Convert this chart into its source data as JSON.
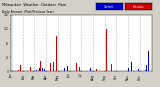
{
  "title": "Milwaukee  Weather  Outdoor  Rain",
  "subtitle": "Daily Amount  (Past/Previous Year)",
  "legend_current_label": "Current",
  "legend_previous_label": "Previous",
  "bar_color_current": "#0000cc",
  "bar_color_previous": "#cc0000",
  "background_color": "#d4d0c8",
  "plot_bg_color": "#ffffff",
  "grid_color": "#aaaaaa",
  "grid_style": "--",
  "ylim_min": 0,
  "ylim_max": 1.6,
  "n_points": 365,
  "month_ticks": [
    0,
    31,
    59,
    90,
    120,
    151,
    181,
    212,
    243,
    273,
    304,
    334
  ],
  "month_labels": [
    "Jan",
    "Feb",
    "Mar",
    "Apr",
    "May",
    "Jun",
    "Jul",
    "Aug",
    "Sep",
    "Oct",
    "Nov",
    "Dec"
  ],
  "ytick_values": [
    0.0,
    0.4,
    0.8,
    1.2,
    1.6
  ],
  "ytick_labels": [
    "0",
    ".4",
    ".8",
    "1.2",
    "1.6"
  ]
}
